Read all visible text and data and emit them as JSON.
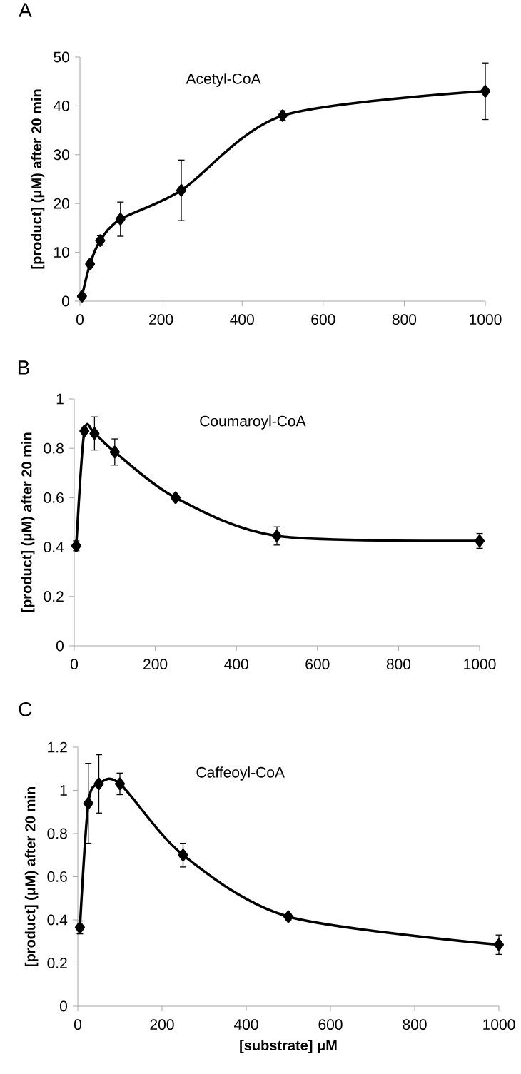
{
  "chart_data": [
    {
      "type": "line",
      "title": "A",
      "ylabel": "[product] (μM) after 20 min",
      "annotations": [
        "Acetyl-CoA"
      ],
      "marker": "diamond",
      "line_style": "solid",
      "x": [
        5,
        25,
        50,
        100,
        250,
        500,
        1000
      ],
      "series": [
        {
          "color": "#000000",
          "values": [
            1,
            7.6,
            12.4,
            16.8,
            22.7,
            38,
            43
          ],
          "errors": [
            null,
            null,
            1,
            3.5,
            6.2,
            1,
            5.8
          ]
        }
      ],
      "xlim": [
        0,
        1000
      ],
      "ylim": [
        0,
        50
      ],
      "xticks": [
        0,
        200,
        400,
        600,
        800,
        1000
      ],
      "yticks": [
        0,
        10,
        20,
        30,
        40,
        50
      ]
    },
    {
      "type": "line",
      "title": "B",
      "ylabel": "[product] (μM) after 20 min",
      "annotations": [
        "Coumaroyl-CoA"
      ],
      "marker": "diamond",
      "line_style": "solid",
      "x": [
        5,
        25,
        50,
        100,
        250,
        500,
        1000
      ],
      "series": [
        {
          "color": "#000000",
          "values": [
            0.405,
            0.87,
            0.86,
            0.785,
            0.6,
            0.445,
            0.425
          ],
          "errors": [
            0.02,
            null,
            0.067,
            0.053,
            0.01,
            0.037,
            0.03
          ]
        }
      ],
      "xlim": [
        0,
        1000
      ],
      "ylim": [
        0,
        1
      ],
      "xticks": [
        0,
        200,
        400,
        600,
        800,
        1000
      ],
      "yticks": [
        0,
        0.2,
        0.4,
        0.6,
        0.8,
        1
      ]
    },
    {
      "type": "line",
      "title": "C",
      "ylabel": "[product] (μM) after 20 min",
      "xlabel": "[substrate] μM",
      "annotations": [
        "Caffeoyl-CoA"
      ],
      "marker": "diamond",
      "line_style": "solid",
      "x": [
        5,
        25,
        50,
        100,
        250,
        500,
        1000
      ],
      "series": [
        {
          "color": "#000000",
          "values": [
            0.365,
            0.94,
            1.03,
            1.03,
            0.7,
            0.415,
            0.285
          ],
          "errors": [
            0.03,
            0.185,
            0.135,
            0.05,
            0.055,
            0.015,
            0.045
          ]
        }
      ],
      "xlim": [
        0,
        1000
      ],
      "ylim": [
        0,
        1.2
      ],
      "xticks": [
        0,
        200,
        400,
        600,
        800,
        1000
      ],
      "yticks": [
        0,
        0.2,
        0.4,
        0.6,
        0.8,
        1,
        1.2
      ]
    }
  ]
}
